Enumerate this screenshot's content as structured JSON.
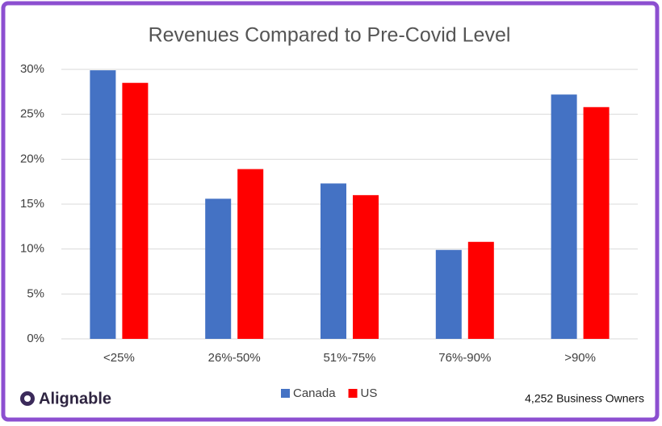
{
  "chart_data": {
    "type": "bar",
    "title": "Revenues Compared to Pre-Covid Level",
    "categories": [
      "<25%",
      "26%-50%",
      "51%-75%",
      "76%-90%",
      ">90%"
    ],
    "series": [
      {
        "name": "Canada",
        "color": "#4472c4",
        "values": [
          29.9,
          15.6,
          17.3,
          9.9,
          27.2
        ]
      },
      {
        "name": "US",
        "color": "#ff0000",
        "values": [
          28.5,
          18.9,
          16.0,
          10.8,
          25.8
        ]
      }
    ],
    "ylim": [
      0,
      30
    ],
    "yticks": [
      {
        "value": 0,
        "label": "0%"
      },
      {
        "value": 5,
        "label": "5%"
      },
      {
        "value": 10,
        "label": "10%"
      },
      {
        "value": 15,
        "label": "15%"
      },
      {
        "value": 20,
        "label": "20%"
      },
      {
        "value": 25,
        "label": "25%"
      },
      {
        "value": 30,
        "label": "30%"
      }
    ],
    "grid": true,
    "legend": "bottom",
    "logo": "Alignable",
    "note": "4,252 Business Owners"
  }
}
